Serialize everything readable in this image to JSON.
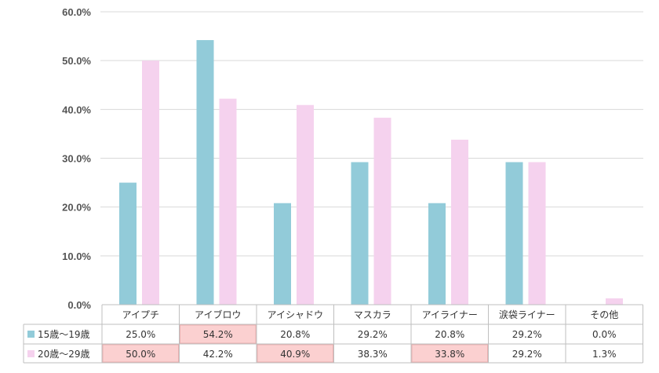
{
  "chart_data": {
    "type": "bar",
    "categories": [
      "アイプチ",
      "アイブロウ",
      "アイシャドウ",
      "マスカラ",
      "アイライナー",
      "涙袋ライナー",
      "その他"
    ],
    "series": [
      {
        "name": "15歳〜19歳",
        "color": "#92cbd9",
        "values": [
          25.0,
          54.2,
          20.8,
          29.2,
          20.8,
          29.2,
          0.0
        ],
        "labels": [
          "25.0%",
          "54.2%",
          "20.8%",
          "29.2%",
          "20.8%",
          "29.2%",
          "0.0%"
        ]
      },
      {
        "name": "20歳〜29歳",
        "color": "#f5d2ee",
        "values": [
          50.0,
          42.2,
          40.9,
          38.3,
          33.8,
          29.2,
          1.3
        ],
        "labels": [
          "50.0%",
          "42.2%",
          "40.9%",
          "38.3%",
          "33.8%",
          "29.2%",
          "1.3%"
        ]
      }
    ],
    "highlighted_cells": [
      [
        0,
        1
      ],
      [
        1,
        0
      ],
      [
        1,
        2
      ],
      [
        1,
        4
      ]
    ],
    "highlight_color": "#fbd0d0",
    "ylim": [
      0,
      60
    ],
    "yticks": [
      "0.0%",
      "10.0%",
      "20.0%",
      "30.0%",
      "40.0%",
      "50.0%",
      "60.0%"
    ],
    "ytick_values": [
      0,
      10,
      20,
      30,
      40,
      50,
      60
    ],
    "grid": true,
    "legend": "data-table-left"
  }
}
